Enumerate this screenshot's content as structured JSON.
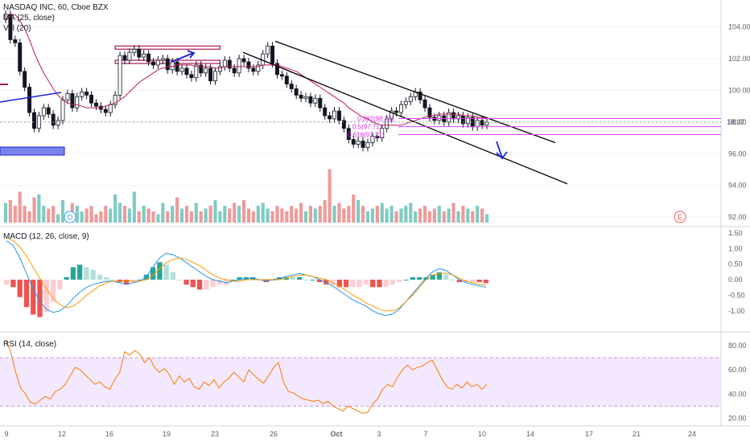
{
  "header": {
    "symbol_title": "NASDAQ INC, 60, Cboe BZX",
    "ma_label": "MA (25, close)",
    "vol_label": "Vol (20)"
  },
  "macd_panel": {
    "label": "MACD (12, 26, close, 9)"
  },
  "rsi_panel": {
    "label": "RSI (14, close)"
  },
  "markers": {
    "dividend": "D",
    "earnings": "E"
  },
  "fib_labels": [
    "0.382(98.22)",
    "0.5(97.71)",
    "0.618(97.21)"
  ],
  "price_badge": "18:07",
  "colors": {
    "up": "#26a69a",
    "down": "#ef5350",
    "ma": "#c2185b",
    "macd": "#2196f3",
    "signal": "#ff9800",
    "rsi": "#f57c00",
    "rsi_band": "#f3e5ff",
    "fib": "#e040fb",
    "rect": "#7b83eb",
    "arrow": "#1a23d8"
  },
  "chart_data": [
    {
      "type": "candlestick",
      "title": "NASDAQ INC, 60, Cboe BZX",
      "x_ticks": [
        "9",
        "12",
        "16",
        "19",
        "23",
        "26",
        "Oct",
        "3",
        "7",
        "10",
        "14",
        "17",
        "21",
        "24"
      ],
      "y_ticks": [
        "92.00",
        "94.00",
        "96.00",
        "98.00",
        "100.00",
        "102.00",
        "104.00"
      ],
      "ylim": [
        91.6,
        105.3
      ],
      "current_price": 98.0,
      "close_series": [
        104.8,
        103.2,
        103.0,
        101.2,
        100.2,
        98.6,
        97.6,
        98.4,
        98.9,
        98.5,
        97.8,
        98.1,
        99.4,
        99.8,
        98.9,
        99.6,
        99.9,
        99.7,
        99.2,
        99.0,
        98.8,
        98.6,
        99.1,
        99.7,
        102.2,
        101.9,
        102.4,
        102.6,
        102.1,
        102.3,
        101.8,
        101.6,
        101.9,
        102.0,
        101.3,
        101.8,
        101.2,
        101.4,
        101.0,
        100.8,
        101.6,
        101.1,
        101.4,
        100.6,
        101.2,
        101.5,
        101.9,
        101.4,
        101.1,
        102.0,
        101.8,
        101.4,
        101.2,
        101.6,
        102.3,
        102.8,
        101.7,
        101.0,
        100.9,
        100.4,
        100.1,
        99.7,
        99.5,
        99.6,
        99.2,
        99.5,
        98.9,
        98.4,
        98.2,
        98.7,
        98.1,
        97.6,
        96.9,
        96.6,
        96.8,
        96.4,
        96.7,
        97.1,
        97.0,
        97.6,
        98.2,
        98.7,
        98.6,
        99.1,
        99.3,
        99.6,
        99.9,
        99.4,
        98.9,
        98.3,
        98.1,
        98.4,
        98.0,
        98.6,
        98.2,
        98.4,
        97.9,
        98.3,
        97.7,
        98.1,
        97.8,
        98.0
      ],
      "moving_average": [
        104.4,
        104.7,
        104.8,
        104.4,
        103.9,
        103.2,
        102.4,
        101.7,
        101.1,
        100.6,
        100.1,
        99.7,
        99.4,
        99.2,
        99.1,
        99.1,
        99.0,
        98.9,
        98.9,
        98.9,
        98.9,
        99.0,
        99.1,
        99.2,
        99.4,
        99.6,
        99.9,
        100.2,
        100.5,
        100.7,
        100.9,
        101.1,
        101.3,
        101.4,
        101.5,
        101.5,
        101.6,
        101.6,
        101.6,
        101.6,
        101.5,
        101.5,
        101.5,
        101.5,
        101.4,
        101.4,
        101.5,
        101.5,
        101.5,
        101.5,
        101.5,
        101.5,
        101.5,
        101.5,
        101.6,
        101.6,
        101.6,
        101.6,
        101.5,
        101.4,
        101.3,
        101.2,
        101.0,
        100.8,
        100.6,
        100.4,
        100.2,
        100.0,
        99.8,
        99.6,
        99.4,
        99.2,
        98.9,
        98.7,
        98.5,
        98.3,
        98.2,
        98.0,
        97.9,
        97.8,
        97.8,
        97.8,
        97.8,
        97.8,
        97.9,
        98.0,
        98.1,
        98.2,
        98.3,
        98.4,
        98.4,
        98.5,
        98.5,
        98.5,
        98.5,
        98.5,
        98.4,
        98.4,
        98.4,
        98.3,
        98.3,
        98.2
      ],
      "channel_upper": [
        [
          26,
          103.1
        ],
        [
          57.5,
          96.7
        ]
      ],
      "channel_lower": [
        [
          21.5,
          102.4
        ],
        [
          61.5,
          94.1
        ]
      ],
      "resistance_zone": [
        102.6,
        102.8
      ],
      "support_zone": [
        101.7,
        101.9
      ],
      "fib_levels": [
        98.22,
        97.71,
        97.21
      ]
    },
    {
      "type": "bar",
      "title": "Vol (20)",
      "bar_heights_relative": [
        0.35,
        0.4,
        0.3,
        0.55,
        0.3,
        0.2,
        0.45,
        0.5,
        0.3,
        0.25,
        0.3,
        0.15,
        0.4,
        0.2,
        0.35,
        0.3,
        0.2,
        0.25,
        0.3,
        0.15,
        0.2,
        0.3,
        0.25,
        0.5,
        0.35,
        0.3,
        0.25,
        0.55,
        0.2,
        0.3,
        0.25,
        0.2,
        0.15,
        0.35,
        0.2,
        0.3,
        0.45,
        0.25,
        0.3,
        0.2,
        0.35,
        0.2,
        0.25,
        0.3,
        0.4,
        0.2,
        0.3,
        0.25,
        0.35,
        0.3,
        0.4,
        0.25,
        0.2,
        0.3,
        0.35,
        0.25,
        0.2,
        0.3,
        0.25,
        0.2,
        0.3,
        0.25,
        0.35,
        0.2,
        0.3,
        0.25,
        0.3,
        0.4,
        0.95,
        0.3,
        0.35,
        0.25,
        0.3,
        0.5,
        0.4,
        0.3,
        0.2,
        0.25,
        0.3,
        0.35,
        0.25,
        0.3,
        0.2,
        0.25,
        0.3,
        0.35,
        0.2,
        0.25,
        0.3,
        0.2,
        0.25,
        0.3,
        0.2,
        0.25,
        0.35,
        0.2,
        0.3,
        0.25,
        0.2,
        0.3,
        0.25,
        0.15
      ]
    },
    {
      "type": "line",
      "title": "MACD (12, 26, close, 9)",
      "y_ticks": [
        "-1.00",
        "-0.50",
        "0.00",
        "0.50",
        "1.00",
        "1.50"
      ],
      "ylim": [
        -1.6,
        1.6
      ],
      "series": [
        {
          "values": [
            1.25,
            1.1,
            0.7,
            0.2,
            -0.3,
            -0.7,
            -0.95,
            -1.05,
            -1.0,
            -0.85,
            -0.6,
            -0.4,
            -0.25,
            -0.15,
            -0.1,
            -0.05,
            -0.05,
            -0.1,
            -0.15,
            -0.1,
            -0.05,
            0.1,
            0.4,
            0.7,
            0.85,
            0.8,
            0.7,
            0.55,
            0.4,
            0.25,
            0.1,
            0.0,
            -0.05,
            -0.1,
            -0.05,
            0.0,
            0.05,
            0.05,
            0.0,
            -0.05,
            0.0,
            0.05,
            0.1,
            0.15,
            0.2,
            0.15,
            0.1,
            0.0,
            -0.1,
            -0.2,
            -0.35,
            -0.5,
            -0.65,
            -0.75,
            -0.85,
            -1.0,
            -1.1,
            -1.15,
            -1.1,
            -0.95,
            -0.7,
            -0.45,
            -0.2,
            0.05,
            0.25,
            0.35,
            0.3,
            0.15,
            0.0,
            -0.1,
            -0.15,
            -0.2,
            -0.25
          ]
        },
        {
          "values": [
            1.35,
            1.25,
            1.05,
            0.75,
            0.4,
            0.05,
            -0.3,
            -0.6,
            -0.8,
            -0.9,
            -0.85,
            -0.7,
            -0.5,
            -0.35,
            -0.2,
            -0.1,
            -0.05,
            -0.05,
            -0.05,
            -0.05,
            -0.05,
            0.0,
            0.15,
            0.35,
            0.55,
            0.65,
            0.7,
            0.65,
            0.55,
            0.45,
            0.3,
            0.15,
            0.05,
            0.0,
            -0.05,
            -0.05,
            0.0,
            0.0,
            0.0,
            0.0,
            0.0,
            0.0,
            0.05,
            0.1,
            0.15,
            0.15,
            0.1,
            0.05,
            0.0,
            -0.1,
            -0.2,
            -0.35,
            -0.5,
            -0.6,
            -0.75,
            -0.85,
            -0.95,
            -1.0,
            -1.0,
            -0.9,
            -0.7,
            -0.5,
            -0.25,
            0.0,
            0.15,
            0.2,
            0.2,
            0.15,
            0.05,
            -0.05,
            -0.1,
            -0.15,
            -0.18
          ]
        }
      ]
    },
    {
      "type": "line",
      "title": "RSI (14, close)",
      "y_ticks": [
        "20.00",
        "40.00",
        "60.00",
        "80.00"
      ],
      "ylim": [
        15,
        88
      ],
      "band": [
        30,
        70
      ],
      "values": [
        85,
        75,
        58,
        45,
        40,
        33,
        32,
        35,
        38,
        36,
        42,
        44,
        48,
        55,
        62,
        60,
        56,
        52,
        48,
        50,
        46,
        44,
        52,
        58,
        75,
        72,
        76,
        73,
        66,
        70,
        62,
        58,
        61,
        56,
        48,
        55,
        50,
        53,
        46,
        44,
        50,
        47,
        52,
        45,
        50,
        53,
        58,
        54,
        50,
        60,
        56,
        52,
        49,
        55,
        62,
        66,
        50,
        42,
        41,
        38,
        36,
        35,
        34,
        35,
        32,
        34,
        30,
        28,
        26,
        30,
        28,
        26,
        24,
        25,
        32,
        36,
        44,
        48,
        46,
        54,
        60,
        64,
        60,
        62,
        63,
        66,
        68,
        60,
        52,
        46,
        44,
        48,
        45,
        50,
        46,
        48,
        44,
        48
      ]
    }
  ]
}
